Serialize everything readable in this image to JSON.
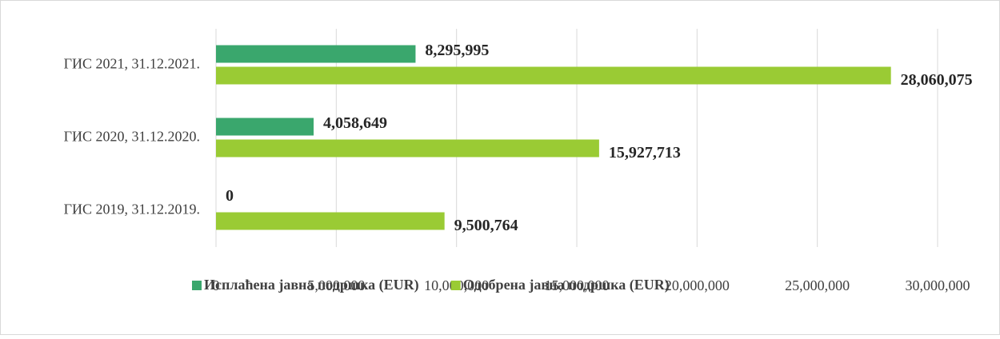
{
  "chart_data": {
    "type": "hbar",
    "categories": [
      "ГИС 2021, 31.12.2021.",
      "ГИС 2020, 31.12.2020.",
      "ГИС 2019, 31.12.2019."
    ],
    "series": [
      {
        "name": "Исплаћена јавна подршка (EUR)",
        "color": "#3aa76d",
        "values": [
          8295995,
          4058649,
          0
        ],
        "value_labels": [
          "8,295,995",
          "4,058,649",
          "0"
        ]
      },
      {
        "name": "Одобрена јавна подршка (EUR)",
        "color": "#9acb34",
        "values": [
          28060075,
          15927713,
          9500764
        ],
        "value_labels": [
          "28,060,075",
          "15,927,713",
          "9,500,764"
        ]
      }
    ],
    "xlim": [
      0,
      30000000
    ],
    "xticks": [
      0,
      {
        "value": 5000000,
        "label": "5,000,000"
      },
      {
        "value": 10000000,
        "label": "10,000,000"
      },
      {
        "value": 15000000,
        "label": "15,000,000"
      },
      {
        "value": 20000000,
        "label": "20,000,000"
      },
      {
        "value": 25000000,
        "label": "25,000,000"
      },
      {
        "value": 30000000,
        "label": "30,000,000"
      }
    ],
    "grid": true,
    "legend": "bottom"
  }
}
